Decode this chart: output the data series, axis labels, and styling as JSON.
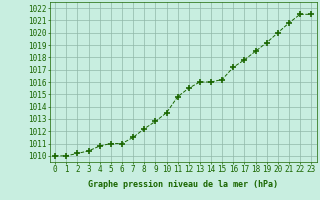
{
  "x": [
    0,
    1,
    2,
    3,
    4,
    5,
    6,
    7,
    8,
    9,
    10,
    11,
    12,
    13,
    14,
    15,
    16,
    17,
    18,
    19,
    20,
    21,
    22,
    23
  ],
  "y": [
    1010.0,
    1010.0,
    1010.2,
    1010.4,
    1010.8,
    1011.0,
    1011.0,
    1011.5,
    1012.2,
    1012.8,
    1013.5,
    1014.8,
    1015.5,
    1016.0,
    1016.0,
    1016.2,
    1017.2,
    1017.8,
    1018.5,
    1019.2,
    1020.0,
    1020.8,
    1021.5,
    1021.5
  ],
  "line_color": "#1a6600",
  "marker_color": "#1a6600",
  "bg_color": "#c8eee0",
  "grid_color": "#90b8a8",
  "xlabel": "Graphe pression niveau de la mer (hPa)",
  "ylim_min": 1009.5,
  "ylim_max": 1022.5,
  "xlim_min": -0.5,
  "xlim_max": 23.5,
  "ytick_start": 1010,
  "ytick_end": 1022,
  "ytick_step": 1,
  "xtick_labels": [
    "0",
    "1",
    "2",
    "3",
    "4",
    "5",
    "6",
    "7",
    "8",
    "9",
    "10",
    "11",
    "12",
    "13",
    "14",
    "15",
    "16",
    "17",
    "18",
    "19",
    "20",
    "21",
    "22",
    "23"
  ],
  "xlabel_fontsize": 6.0,
  "tick_fontsize": 5.5,
  "tick_color": "#1a6600",
  "label_color": "#1a6600"
}
